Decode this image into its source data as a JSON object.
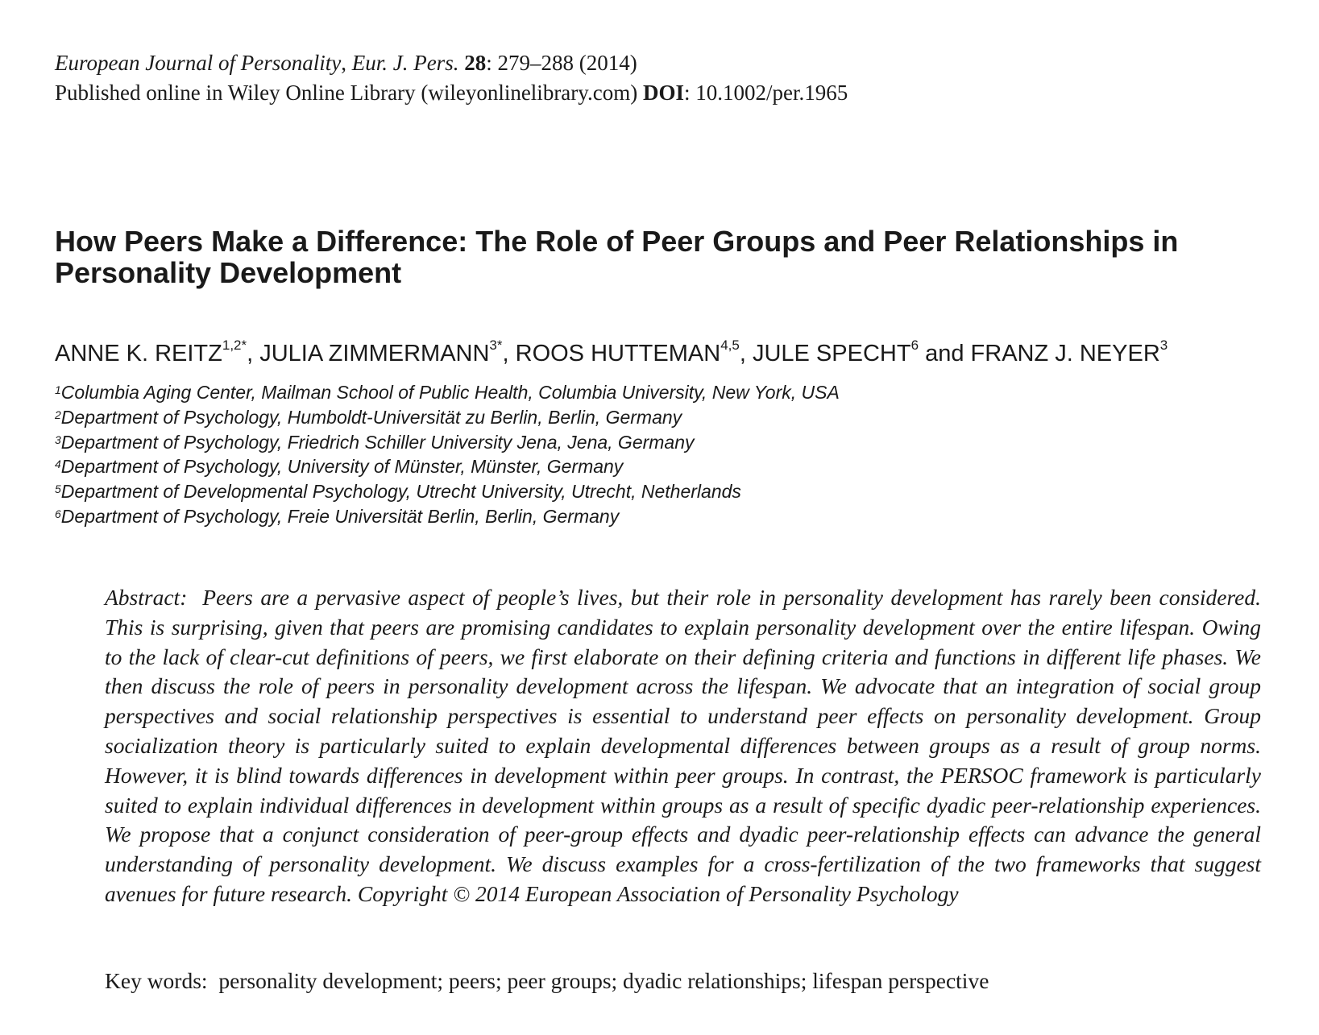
{
  "journal": {
    "name": "European Journal of Personality",
    "abbrev": "Eur. J. Pers.",
    "volume": "28",
    "pages": ": 279–288 (2014)",
    "published": "Published online in Wiley Online Library (wileyonlinelibrary.com)",
    "doi_label": "DOI",
    "doi": ": 10.1002/per.1965"
  },
  "title": "How Peers Make a Difference: The Role of Peer Groups and Peer Relationships in Personality Development",
  "authors": [
    {
      "name": "ANNE K. REITZ",
      "sup": "1,2*",
      "sep": ", "
    },
    {
      "name": "JULIA ZIMMERMANN",
      "sup": "3*",
      "sep": ", "
    },
    {
      "name": "ROOS HUTTEMAN",
      "sup": "4,5",
      "sep": ", "
    },
    {
      "name": "JULE SPECHT",
      "sup": "6",
      "sep": " and "
    },
    {
      "name": "FRANZ J. NEYER",
      "sup": "3",
      "sep": ""
    }
  ],
  "affiliations": [
    {
      "num": "1",
      "text": "Columbia Aging Center, Mailman School of Public Health, Columbia University, New York, USA"
    },
    {
      "num": "2",
      "text": "Department of Psychology, Humboldt-Universität zu Berlin, Berlin, Germany"
    },
    {
      "num": "3",
      "text": "Department of Psychology, Friedrich Schiller University Jena, Jena, Germany"
    },
    {
      "num": "4",
      "text": "Department of Psychology, University of Münster, Münster, Germany"
    },
    {
      "num": "5",
      "text": "Department of Developmental Psychology, Utrecht University, Utrecht, Netherlands"
    },
    {
      "num": "6",
      "text": "Department of Psychology, Freie Universität Berlin, Berlin, Germany"
    }
  ],
  "abstract": {
    "label": "Abstract:",
    "text": "Peers are a pervasive aspect of people’s lives, but their role in personality development has rarely been considered. This is surprising, given that peers are promising candidates to explain personality development over the entire lifespan. Owing to the lack of clear-cut definitions of peers, we first elaborate on their defining criteria and functions in different life phases. We then discuss the role of peers in personality development across the lifespan. We advocate that an integration of social group perspectives and social relationship perspectives is essential to understand peer effects on personality development. Group socialization theory is particularly suited to explain developmental differences between groups as a result of group norms. However, it is blind towards differences in development within peer groups. In contrast, the PERSOC framework is particularly suited to explain individual differences in development within groups as a result of specific dyadic peer-relationship experiences. We propose that a conjunct consideration of peer-group effects and dyadic peer-relationship effects can advance the general understanding of personality development. We discuss examples for a cross-fertilization of the two frameworks that suggest avenues for future research. Copyright © 2014 European Association of Personality Psychology"
  },
  "keywords": {
    "label": "Key words:",
    "text": "personality development; peers; peer groups; dyadic relationships; lifespan perspective"
  }
}
